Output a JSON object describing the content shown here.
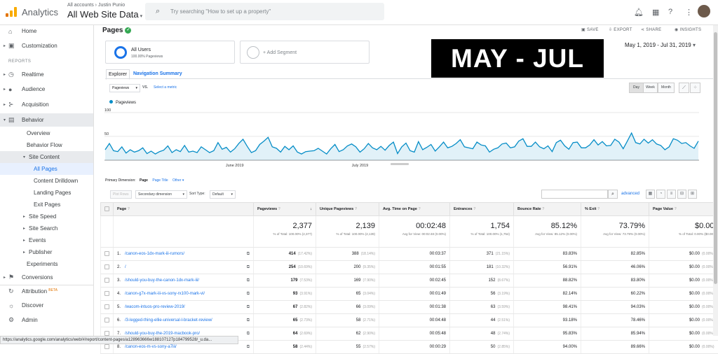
{
  "topbar": {
    "brand": "Analytics",
    "account_path": "All accounts › Justin Punio",
    "account_view": "All Web Site Data",
    "search_placeholder": "Try searching \"How to set up a property\""
  },
  "sidebar": {
    "home": "Home",
    "customization": "Customization",
    "reports_header": "REPORTS",
    "realtime": "Realtime",
    "audience": "Audience",
    "acquisition": "Acquisition",
    "behavior": "Behavior",
    "overview": "Overview",
    "behavior_flow": "Behavior Flow",
    "site_content": "Site Content",
    "all_pages": "All Pages",
    "content_drilldown": "Content Drilldown",
    "landing_pages": "Landing Pages",
    "exit_pages": "Exit Pages",
    "site_speed": "Site Speed",
    "site_search": "Site Search",
    "events": "Events",
    "publisher": "Publisher",
    "experiments": "Experiments",
    "conversions": "Conversions",
    "attribution": "Attribution",
    "attribution_badge": "BETA",
    "discover": "Discover",
    "admin": "Admin"
  },
  "header": {
    "title": "Pages",
    "save": "SAVE",
    "export": "EXPORT",
    "share": "SHARE",
    "insights": "INSIGHTS",
    "date_range": "May 1, 2019 - Jul 31, 2019"
  },
  "segments": {
    "active_name": "All Users",
    "active_sub": "100.00% Pageviews",
    "add": "+ Add Segment"
  },
  "overlay_text": "MAY - JUL",
  "tabs": {
    "explorer": "Explorer",
    "navigation_summary": "Navigation Summary"
  },
  "controls": {
    "metric": "Pageviews",
    "vs": "VS.",
    "select_metric": "Select a metric",
    "day": "Day",
    "week": "Week",
    "month": "Month",
    "primary_dimension_label": "Primary Dimension:",
    "pd_page": "Page",
    "pd_page_title": "Page Title",
    "pd_other": "Other",
    "plot_rows": "Plot Rows",
    "secondary_dimension": "Secondary dimension",
    "sort_type_label": "Sort Type:",
    "sort_type": "Default",
    "advanced": "advanced"
  },
  "chart_data": {
    "type": "line",
    "series": [
      {
        "name": "Pageviews",
        "values": [
          22,
          35,
          20,
          18,
          28,
          15,
          22,
          17,
          20,
          26,
          14,
          19,
          13,
          18,
          21,
          30,
          16,
          22,
          18,
          31,
          17,
          19,
          16,
          28,
          22,
          16,
          20,
          37,
          23,
          27,
          17,
          24,
          35,
          44,
          29,
          16,
          20,
          33,
          40,
          48,
          28,
          25,
          17,
          29,
          22,
          30,
          17,
          13,
          18,
          19,
          20,
          25,
          19,
          13,
          24,
          33,
          18,
          22,
          30,
          34,
          28,
          17,
          24,
          35,
          26,
          22,
          29,
          21,
          31,
          38,
          14,
          28,
          36,
          20,
          17,
          39,
          22,
          27,
          33,
          19,
          28,
          38,
          26,
          29,
          35,
          43,
          28,
          26,
          24,
          38,
          32,
          30,
          17,
          23,
          26,
          34,
          36,
          26,
          28,
          40,
          45,
          29,
          29,
          38,
          28,
          24,
          30,
          18,
          37,
          42,
          30,
          23,
          37,
          38,
          26,
          26,
          32,
          43,
          32,
          39,
          30,
          31,
          44,
          38,
          24,
          40,
          57,
          37,
          34,
          44,
          36,
          43,
          34,
          31,
          22,
          28,
          45,
          42,
          35,
          37,
          30,
          25,
          40
        ]
      }
    ],
    "x_ticks": [
      "June 2019",
      "July 2019"
    ],
    "y_ticks": [
      100,
      50
    ],
    "ylim": [
      0,
      110
    ],
    "grid": true,
    "color": "#058dc7"
  },
  "table": {
    "headers": {
      "page": "Page",
      "pageviews": "Pageviews",
      "unique": "Unique Pageviews",
      "avg_time": "Avg. Time on Page",
      "entrances": "Entrances",
      "bounce": "Bounce Rate",
      "exit": "% Exit",
      "value": "Page Value"
    },
    "totals": {
      "pageviews": "2,377",
      "pageviews_sub": "% of Total: 100.00% (2,377)",
      "unique": "2,139",
      "unique_sub": "% of Total: 100.00% (2,139)",
      "avg_time": "00:02:48",
      "avg_time_sub": "Avg for View: 00:02:48 (0.00%)",
      "entrances": "1,754",
      "entrances_sub": "% of Total: 100.00% (1,754)",
      "bounce": "85.12%",
      "bounce_sub": "Avg for View: 85.12% (0.00%)",
      "exit": "73.79%",
      "exit_sub": "Avg for View: 73.79% (0.00%)",
      "value": "$0.00",
      "value_sub": "% of Total: 0.00% ($0.00)"
    },
    "rows": [
      {
        "idx": "1.",
        "page": "/canon-eos-1dx-mark-iii-rumors/",
        "pv": "414",
        "pvp": "(17.42%)",
        "up": "388",
        "upp": "(18.14%)",
        "t": "00:03:37",
        "en": "371",
        "enp": "(21.15%)",
        "br": "83.83%",
        "ex": "82.85%",
        "val": "$0.00",
        "valp": "(0.00%)"
      },
      {
        "idx": "2.",
        "page": "/",
        "pv": "254",
        "pvp": "(10.69%)",
        "up": "200",
        "upp": "(9.35%)",
        "t": "00:01:55",
        "en": "181",
        "enp": "(10.32%)",
        "br": "56.91%",
        "ex": "46.06%",
        "val": "$0.00",
        "valp": "(0.00%)"
      },
      {
        "idx": "3.",
        "page": "/should-you-buy-the-canon-1dx-mark-iii/",
        "pv": "179",
        "pvp": "(7.53%)",
        "up": "169",
        "upp": "(7.90%)",
        "t": "00:02:45",
        "en": "152",
        "enp": "(8.67%)",
        "br": "88.82%",
        "ex": "83.80%",
        "val": "$0.00",
        "valp": "(0.00%)"
      },
      {
        "idx": "4.",
        "page": "/canon-g7x-mark-iii-vs-sony-rx100-mark-vi/",
        "pv": "93",
        "pvp": "(3.91%)",
        "up": "65",
        "upp": "(3.04%)",
        "t": "00:01:49",
        "en": "56",
        "enp": "(3.19%)",
        "br": "82.14%",
        "ex": "60.22%",
        "val": "$0.00",
        "valp": "(0.00%)"
      },
      {
        "idx": "5.",
        "page": "/wacom-intuos-pro-review-2019/",
        "pv": "67",
        "pvp": "(2.82%)",
        "up": "66",
        "upp": "(3.09%)",
        "t": "00:01:38",
        "en": "63",
        "enp": "(3.59%)",
        "br": "98.41%",
        "ex": "94.03%",
        "val": "$0.00",
        "valp": "(0.00%)"
      },
      {
        "idx": "6.",
        "page": "/3-legged-thing-ellie-universal-l-bracket-review/",
        "pv": "65",
        "pvp": "(2.73%)",
        "up": "58",
        "upp": "(2.71%)",
        "t": "00:04:48",
        "en": "44",
        "enp": "(2.51%)",
        "br": "93.18%",
        "ex": "78.46%",
        "val": "$0.00",
        "valp": "(0.00%)"
      },
      {
        "idx": "7.",
        "page": "/should-you-buy-the-2019-macbook-pro/",
        "pv": "64",
        "pvp": "(2.69%)",
        "up": "62",
        "upp": "(2.90%)",
        "t": "00:05:48",
        "en": "48",
        "enp": "(2.74%)",
        "br": "95.83%",
        "ex": "85.94%",
        "val": "$0.00",
        "valp": "(0.00%)"
      },
      {
        "idx": "8.",
        "page": "/canon-eos-m-vs-sony-a7iii/",
        "pv": "58",
        "pvp": "(2.44%)",
        "up": "55",
        "upp": "(2.57%)",
        "t": "00:00:29",
        "en": "50",
        "enp": "(2.85%)",
        "br": "94.00%",
        "ex": "89.66%",
        "val": "$0.00",
        "valp": "(0.00%)"
      }
    ]
  },
  "statusbar": "https://analytics.google.com/analytics/web/#/report/content-pages/a128963666w188107127p184799528/_u.da..."
}
